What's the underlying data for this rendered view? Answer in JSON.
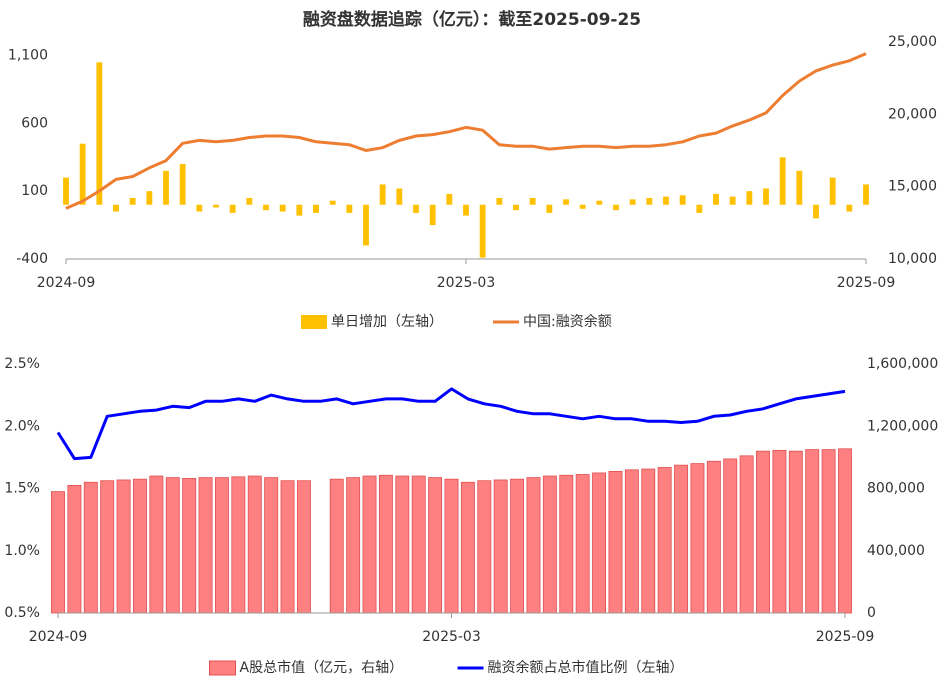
{
  "chart_data": [
    {
      "type": "combo",
      "title": "融资盘数据追踪（亿元）：截至2025-09-25",
      "categories": [
        "2024-09",
        null,
        null,
        null,
        null,
        null,
        null,
        null,
        null,
        null,
        null,
        null,
        null,
        null,
        null,
        null,
        null,
        null,
        null,
        null,
        null,
        null,
        null,
        null,
        "2025-03",
        null,
        null,
        null,
        null,
        null,
        null,
        null,
        null,
        null,
        null,
        null,
        null,
        null,
        null,
        null,
        null,
        null,
        null,
        null,
        null,
        null,
        null,
        null,
        "2025-09"
      ],
      "ylim": [
        -400,
        1200
      ],
      "yticks": [
        -400,
        100,
        600,
        {
          "value": 1100,
          "label": "1,100"
        }
      ],
      "y2lim": [
        10000,
        25000
      ],
      "y2ticks": [
        {
          "value": 10000,
          "label": "10,000"
        },
        {
          "value": 15000,
          "label": "15,000"
        },
        {
          "value": 20000,
          "label": "20,000"
        },
        {
          "value": 25000,
          "label": "25,000"
        }
      ],
      "series": [
        {
          "name": "单日增加（左轴）",
          "kind": "bar",
          "color": "#ffc000",
          "values": [
            200,
            450,
            1050,
            -50,
            50,
            100,
            250,
            300,
            -50,
            -20,
            -60,
            50,
            -40,
            -50,
            -80,
            -60,
            30,
            -60,
            -300,
            150,
            120,
            -60,
            -150,
            80,
            -80,
            -390,
            50,
            -40,
            50,
            -60,
            40,
            -30,
            30,
            -40,
            40,
            50,
            60,
            70,
            -60,
            80,
            60,
            100,
            120,
            350,
            250,
            -100,
            200,
            -50,
            150
          ]
        },
        {
          "name": "中国:融资余额",
          "kind": "line",
          "axis": "y2",
          "color": "#ed7d31",
          "values": [
            13500,
            14000,
            14700,
            15500,
            15700,
            16300,
            16800,
            18000,
            18200,
            18100,
            18200,
            18400,
            18500,
            18500,
            18400,
            18100,
            18000,
            17900,
            17500,
            17700,
            18200,
            18500,
            18600,
            18800,
            19100,
            18900,
            17900,
            17800,
            17800,
            17600,
            17700,
            17800,
            17800,
            17700,
            17800,
            17800,
            17900,
            18100,
            18500,
            18700,
            19200,
            19600,
            20100,
            21300,
            22300,
            23000,
            23400,
            23700,
            24200
          ]
        }
      ]
    },
    {
      "type": "combo",
      "categories": [
        "2024-09",
        null,
        null,
        null,
        null,
        null,
        null,
        null,
        null,
        null,
        null,
        null,
        null,
        null,
        null,
        null,
        null,
        null,
        null,
        null,
        null,
        null,
        null,
        null,
        "2025-03",
        null,
        null,
        null,
        null,
        null,
        null,
        null,
        null,
        null,
        null,
        null,
        null,
        null,
        null,
        null,
        null,
        null,
        null,
        null,
        null,
        null,
        null,
        null,
        "2025-09"
      ],
      "ylim": [
        0.5,
        2.5
      ],
      "yticks": [
        {
          "value": 0.5,
          "label": "0.5%"
        },
        {
          "value": 1.0,
          "label": "1.0%"
        },
        {
          "value": 1.5,
          "label": "1.5%"
        },
        {
          "value": 2.0,
          "label": "2.0%"
        },
        {
          "value": 2.5,
          "label": "2.5%"
        }
      ],
      "y2lim": [
        0,
        1600000
      ],
      "y2ticks": [
        0,
        {
          "value": 400000,
          "label": "400,000"
        },
        {
          "value": 800000,
          "label": "800,000"
        },
        {
          "value": 1200000,
          "label": "1,200,000"
        },
        {
          "value": 1600000,
          "label": "1,600,000"
        }
      ],
      "series": [
        {
          "name": "A股总市值（亿元，右轴）",
          "kind": "bar",
          "axis": "y2",
          "color": "#ff8080",
          "values": [
            780000,
            820000,
            840000,
            850000,
            855000,
            860000,
            880000,
            870000,
            865000,
            870000,
            870000,
            875000,
            880000,
            870000,
            850000,
            850000,
            null,
            860000,
            870000,
            880000,
            885000,
            880000,
            880000,
            870000,
            860000,
            840000,
            850000,
            855000,
            860000,
            870000,
            880000,
            885000,
            890000,
            900000,
            910000,
            920000,
            925000,
            935000,
            950000,
            960000,
            975000,
            990000,
            1010000,
            1040000,
            1045000,
            1040000,
            1050000,
            1050000,
            1055000
          ]
        },
        {
          "name": "融资余额占总市值比例（左轴）",
          "kind": "line",
          "color": "#0000ff",
          "values": [
            1.95,
            1.74,
            1.75,
            2.08,
            2.1,
            2.12,
            2.13,
            2.16,
            2.15,
            2.2,
            2.2,
            2.22,
            2.2,
            2.25,
            2.22,
            2.2,
            2.2,
            2.22,
            2.18,
            2.2,
            2.22,
            2.22,
            2.2,
            2.2,
            2.3,
            2.22,
            2.18,
            2.16,
            2.12,
            2.1,
            2.1,
            2.08,
            2.06,
            2.08,
            2.06,
            2.06,
            2.04,
            2.04,
            2.03,
            2.04,
            2.08,
            2.09,
            2.12,
            2.14,
            2.18,
            2.22,
            2.24,
            2.26,
            2.28
          ]
        }
      ]
    }
  ]
}
